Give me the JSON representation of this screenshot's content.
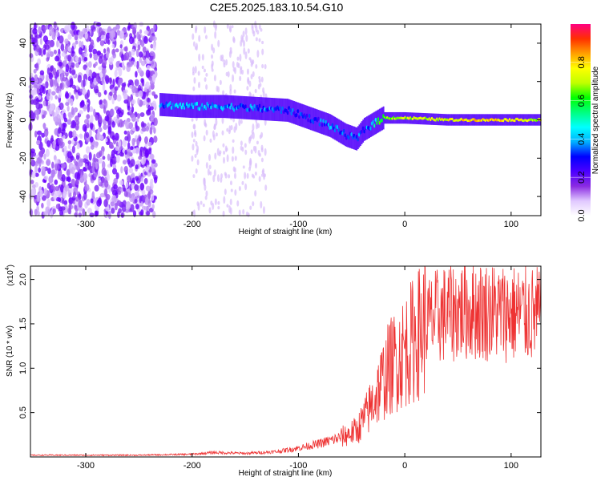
{
  "title": "C2E5.2025.183.10.54.G10",
  "chart_data": [
    {
      "type": "heatmap",
      "xlabel": "Height of straight line (km)",
      "ylabel": "Frequency (Hz)",
      "xlim": [
        -352,
        128
      ],
      "ylim": [
        -50,
        50
      ],
      "x_ticks": [
        "-300",
        "-200",
        "-100",
        "0",
        "100"
      ],
      "y_ticks": [
        "-40",
        "-20",
        "0",
        "20",
        "40"
      ],
      "colorbar": {
        "label": "Normalized spectral amplitude",
        "range": [
          0,
          1
        ],
        "ticks": [
          "0.0",
          "0.2",
          "0.4",
          "0.6",
          "0.8"
        ],
        "colormap": [
          "#ffffff",
          "#e0c8ff",
          "#8a2be2",
          "#4b00ff",
          "#0000ff",
          "#00b0ff",
          "#00ffff",
          "#00ff80",
          "#00ff00",
          "#c0ff00",
          "#ffff00",
          "#ffa000",
          "#ff3000",
          "#ff0080"
        ]
      },
      "ridge": {
        "x": [
          -230,
          -200,
          -170,
          -140,
          -110,
          -85,
          -70,
          -55,
          -45,
          -38,
          -20,
          0,
          40,
          80,
          128
        ],
        "freq": [
          8,
          7,
          7,
          6,
          5,
          0,
          -3,
          -8,
          -10,
          -5,
          1,
          1,
          0,
          0,
          0
        ],
        "amplitude": [
          0.35,
          0.4,
          0.35,
          0.35,
          0.3,
          0.3,
          0.35,
          0.3,
          0.35,
          0.3,
          0.65,
          0.7,
          0.75,
          0.8,
          0.7
        ]
      }
    },
    {
      "type": "line",
      "xlabel": "Height of straight line (km)",
      "ylabel": "SNR (10 * v/v)",
      "y_multiplier": "(x10",
      "y_exponent": "4",
      "xlim": [
        -352,
        128
      ],
      "ylim": [
        0,
        2.15
      ],
      "x_ticks": [
        "-300",
        "-200",
        "-100",
        "0",
        "100"
      ],
      "y_ticks": [
        "0.5",
        "1.0",
        "1.5",
        "2.0"
      ],
      "series": [
        {
          "color": "#ee3333",
          "x": [
            -352,
            -300,
            -250,
            -200,
            -180,
            -150,
            -120,
            -100,
            -80,
            -60,
            -45,
            -35,
            -25,
            -15,
            0,
            10,
            20,
            30,
            40,
            60,
            80,
            100,
            120,
            128
          ],
          "y": [
            0.02,
            0.02,
            0.02,
            0.03,
            0.05,
            0.04,
            0.06,
            0.1,
            0.15,
            0.22,
            0.3,
            0.5,
            0.75,
            1.0,
            1.2,
            1.35,
            1.5,
            1.58,
            1.62,
            1.66,
            1.64,
            1.62,
            1.6,
            1.6
          ]
        }
      ]
    }
  ]
}
